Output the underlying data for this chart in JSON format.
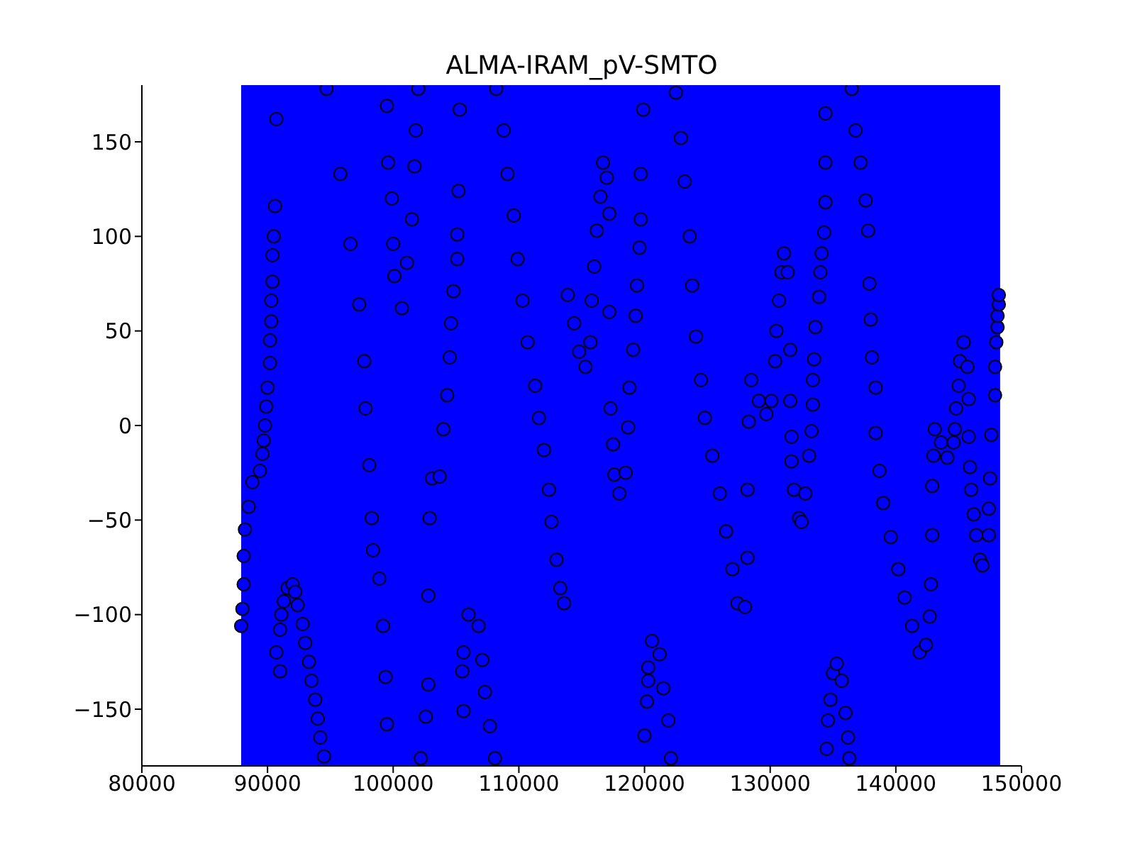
{
  "chart_data": {
    "type": "scatter",
    "title": "ALMA-IRAM_pV-SMTO",
    "marker": "circle",
    "grid": false,
    "legend": false,
    "xlim": [
      80000,
      150000
    ],
    "xticks": [
      80000,
      90000,
      100000,
      110000,
      120000,
      130000,
      140000,
      150000
    ],
    "ylim": [
      -180,
      180
    ],
    "yticks": [
      -150,
      -100,
      -50,
      0,
      50,
      100,
      150
    ],
    "bands": [
      {
        "axis": "x",
        "from": 87900,
        "to": 148300,
        "color": "#0000ff"
      }
    ],
    "series": [
      {
        "color": "#0000ff",
        "x": [
          87900,
          88000,
          88100,
          88100,
          88200,
          88500,
          88800,
          89400,
          89600,
          89700,
          89800,
          89900,
          90000,
          90200,
          90200,
          90300,
          90300,
          90400,
          90400,
          90500,
          90600,
          90700,
          91000,
          90700,
          91000,
          91100,
          91300,
          91600,
          92000,
          92200,
          92400,
          92800,
          93000,
          93300,
          93500,
          93800,
          94000,
          94200,
          94500,
          94700,
          95800,
          96600,
          97300,
          97700,
          97800,
          98100,
          98300,
          98400,
          98900,
          99200,
          99400,
          99500,
          99500,
          99600,
          99900,
          100000,
          100100,
          100700,
          101100,
          101500,
          101700,
          101800,
          102000,
          102200,
          102600,
          102800,
          102800,
          102900,
          103100,
          103700,
          104000,
          104300,
          104500,
          104600,
          104800,
          105100,
          105100,
          105200,
          105300,
          105600,
          105500,
          105600,
          106000,
          106800,
          107100,
          107300,
          107700,
          108100,
          108200,
          108800,
          109100,
          109600,
          109900,
          110300,
          110700,
          111300,
          111600,
          112000,
          112400,
          112600,
          113000,
          113300,
          113600,
          113900,
          114400,
          114800,
          115300,
          115700,
          115800,
          116000,
          116200,
          116500,
          116700,
          117000,
          117200,
          117200,
          117300,
          117500,
          117600,
          118000,
          118500,
          118700,
          118800,
          119100,
          119300,
          119400,
          119600,
          119700,
          119700,
          119900,
          120000,
          120200,
          120300,
          120300,
          120600,
          121200,
          121500,
          121900,
          122100,
          122500,
          122900,
          123200,
          123600,
          123800,
          124100,
          124500,
          124800,
          125400,
          126000,
          126500,
          127000,
          127400,
          128000,
          128200,
          128200,
          128300,
          128500,
          129100,
          129700,
          130100,
          130400,
          130500,
          130700,
          130900,
          131100,
          131400,
          131600,
          131600,
          131700,
          131700,
          131900,
          132300,
          132500,
          132800,
          133100,
          133300,
          133400,
          133400,
          133500,
          133600,
          133900,
          134000,
          134100,
          134300,
          134400,
          134400,
          134400,
          134500,
          134600,
          134800,
          135000,
          135300,
          135700,
          136000,
          136200,
          136300,
          136500,
          136800,
          137200,
          137600,
          137800,
          137900,
          138000,
          138100,
          138400,
          138400,
          138700,
          139000,
          139600,
          140200,
          140700,
          141300,
          141900,
          142400,
          142700,
          142800,
          142900,
          142900,
          143000,
          143100,
          143600,
          144100,
          144600,
          144700,
          144800,
          145000,
          145100,
          145400,
          145700,
          145800,
          145800,
          145900,
          146000,
          146200,
          146400,
          146700,
          146900,
          147400,
          147400,
          147500,
          147600,
          147900,
          147900,
          148000,
          148100,
          148100,
          148200,
          148200
        ],
        "values": [
          -106,
          -97,
          -84,
          -69,
          -55,
          -43,
          -30,
          -24,
          -15,
          -8,
          0,
          10,
          20,
          33,
          45,
          55,
          66,
          76,
          90,
          100,
          116,
          162,
          -130,
          -120,
          -108,
          -100,
          -93,
          -86,
          -84,
          -88,
          -95,
          -105,
          -115,
          -125,
          -135,
          -145,
          -155,
          -165,
          -175,
          178,
          133,
          96,
          64,
          34,
          9,
          -21,
          -49,
          -66,
          -81,
          -106,
          -133,
          -158,
          169,
          139,
          120,
          96,
          79,
          62,
          86,
          109,
          137,
          156,
          178,
          -176,
          -154,
          -137,
          -90,
          -49,
          -28,
          -27,
          -2,
          16,
          36,
          54,
          71,
          88,
          101,
          124,
          167,
          -151,
          -130,
          -120,
          -100,
          -106,
          -124,
          -141,
          -159,
          -176,
          178,
          156,
          133,
          111,
          88,
          66,
          44,
          21,
          4,
          -13,
          -34,
          -51,
          -71,
          -86,
          -94,
          69,
          54,
          39,
          31,
          44,
          66,
          84,
          103,
          121,
          139,
          131,
          112,
          60,
          9,
          -10,
          -26,
          -36,
          -25,
          -1,
          20,
          40,
          58,
          74,
          94,
          109,
          133,
          167,
          -164,
          -146,
          -135,
          -128,
          -114,
          -121,
          -139,
          -156,
          -176,
          176,
          152,
          129,
          100,
          74,
          47,
          24,
          4,
          -16,
          -36,
          -56,
          -76,
          -94,
          -96,
          -70,
          -34,
          2,
          24,
          13,
          6,
          13,
          34,
          50,
          66,
          81,
          91,
          81,
          40,
          13,
          -6,
          -19,
          -34,
          -49,
          -51,
          -36,
          -16,
          -3,
          11,
          24,
          35,
          52,
          68,
          81,
          91,
          102,
          118,
          139,
          165,
          -171,
          -156,
          -145,
          -131,
          -126,
          -135,
          -152,
          -165,
          -176,
          178,
          156,
          139,
          119,
          103,
          75,
          56,
          36,
          20,
          -4,
          -24,
          -41,
          -59,
          -76,
          -91,
          -106,
          -120,
          -116,
          -101,
          -84,
          -58,
          -32,
          -16,
          -2,
          -9,
          -17,
          -9,
          -2,
          9,
          21,
          34,
          44,
          31,
          14,
          -6,
          -22,
          -34,
          -47,
          -58,
          -71,
          -74,
          -58,
          -44,
          -28,
          -5,
          16,
          31,
          44,
          52,
          58,
          64,
          69
        ]
      }
    ]
  }
}
